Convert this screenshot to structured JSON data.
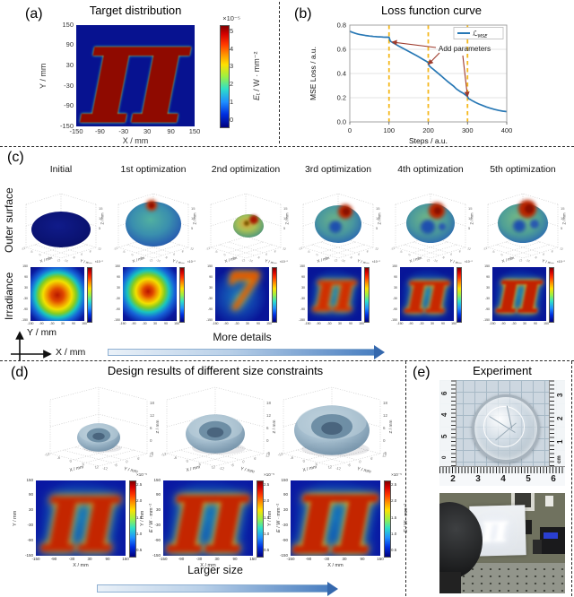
{
  "figure": {
    "panel_a": {
      "tag": "(a)",
      "title": "Target distribution",
      "glyph": "π",
      "xlabel": "X / mm",
      "ylabel": "Y / mm",
      "xticks": [
        "-150",
        "-90",
        "-30",
        "30",
        "90",
        "150"
      ],
      "yticks": [
        "150",
        "90",
        "30",
        "-30",
        "-90",
        "-150"
      ],
      "colorbar": {
        "exp": "×10⁻⁵",
        "ticks": [
          "5",
          "4",
          "3",
          "2",
          "1",
          "0"
        ],
        "label_main": "E",
        "label_sub": "t",
        "label_rest": " / W · mm⁻²"
      }
    },
    "panel_b": {
      "tag": "(b)",
      "title": "Loss function curve"
    },
    "panel_c": {
      "tag": "(c)",
      "row_labels": [
        "Outer surface",
        "Irradiance"
      ],
      "columns": [
        "Initial",
        "1st optimization",
        "2nd optimization",
        "3rd optimization",
        "4th optimization",
        "5th optimization"
      ],
      "surface_axes": {
        "xlabel": "X / mm",
        "ylabel": "Y / mm",
        "zlabel": "Z / mm",
        "zticks": [
          "15",
          "10",
          "5"
        ],
        "xyticks": [
          "-12",
          "-6",
          "0",
          "6",
          "12"
        ]
      },
      "irr_axes": {
        "xticks": [
          "-150",
          "-90",
          "-30",
          "30",
          "90",
          "150"
        ],
        "yticks": [
          "150",
          "90",
          "30",
          "-30",
          "-90",
          "-150"
        ]
      },
      "irr_glyphs": [
        "",
        "",
        "7",
        "π",
        "π",
        "π"
      ],
      "irr_cb_exp": "×10⁻⁵",
      "axes_icon": {
        "x_label": "X / mm",
        "y_label": "Y / mm"
      },
      "arrow_label": "More details"
    },
    "panel_d": {
      "tag": "(d)",
      "title": "Design results of different size constraints",
      "glyph": "π",
      "lens_axes": {
        "xlabel": "X / mm",
        "ylabel": "Y / mm",
        "zlabel": "Z / mm",
        "zticks": [
          "18",
          "12",
          "6",
          "0",
          "-6"
        ],
        "xyticks": [
          "-12",
          "-6",
          "0",
          "6",
          "12"
        ]
      },
      "map_axes": {
        "xlabel": "X / mm",
        "ylabel": "Y / mm",
        "xticks": [
          "-150",
          "-90",
          "-30",
          "30",
          "90",
          "150"
        ],
        "yticks": [
          "150",
          "90",
          "30",
          "-30",
          "-90",
          "-150"
        ]
      },
      "colorbar": {
        "exp": "×10⁻⁵",
        "ticks": [
          "2.5",
          "2.0",
          "1.5",
          "1.0",
          "0.5"
        ],
        "label_main": "E",
        "label_sub": "",
        "label_rest": " / W · mm⁻²"
      },
      "arrow_label": "Larger size"
    },
    "panel_e": {
      "tag": "(e)",
      "title": "Experiment",
      "glyph": "π",
      "ruler_bottom": [
        "2",
        "3",
        "4",
        "5",
        "6"
      ],
      "ruler_right": [
        "3",
        "2",
        "1"
      ],
      "ruler_right_unit": "cm",
      "ruler_left": [
        "6",
        "4",
        "5",
        "0"
      ]
    }
  },
  "chart_data": {
    "type": "line",
    "title": "Loss function curve",
    "xlabel": "Steps / a.u.",
    "ylabel": "MSE Loss / a.u.",
    "xlim": [
      0,
      400
    ],
    "ylim": [
      0,
      0.8
    ],
    "xticks": [
      0,
      100,
      200,
      300,
      400
    ],
    "yticks": [
      "0.0",
      "0.2",
      "0.4",
      "0.6",
      "0.8"
    ],
    "grid": "horizontal",
    "legend": {
      "position": "upper right",
      "label_main": "ℒ",
      "label_sub": "MSE"
    },
    "line_color": "#2878b5",
    "vlines": {
      "x": [
        100,
        200,
        300
      ],
      "color": "#f5b81c",
      "style": "dashed"
    },
    "annotation": {
      "text": "Add parameters",
      "color": "#9e3b2d",
      "arrow_targets": [
        [
          108,
          0.66
        ],
        [
          200,
          0.475
        ],
        [
          300,
          0.21
        ]
      ]
    },
    "series": [
      {
        "name": "L_MSE",
        "x": [
          0,
          5,
          10,
          15,
          20,
          25,
          30,
          35,
          40,
          45,
          50,
          55,
          60,
          65,
          70,
          75,
          80,
          85,
          90,
          95,
          100,
          103,
          108,
          115,
          122,
          130,
          138,
          146,
          154,
          162,
          170,
          178,
          186,
          194,
          200,
          202,
          207,
          212,
          218,
          225,
          232,
          240,
          248,
          256,
          264,
          272,
          280,
          288,
          294,
          300,
          303,
          308,
          314,
          321,
          329,
          338,
          348,
          358,
          369,
          380,
          390,
          400
        ],
        "y": [
          0.75,
          0.742,
          0.736,
          0.731,
          0.727,
          0.723,
          0.72,
          0.717,
          0.714,
          0.712,
          0.71,
          0.708,
          0.706,
          0.705,
          0.704,
          0.703,
          0.702,
          0.701,
          0.7,
          0.7,
          0.699,
          0.668,
          0.658,
          0.645,
          0.632,
          0.618,
          0.604,
          0.59,
          0.576,
          0.562,
          0.548,
          0.533,
          0.518,
          0.503,
          0.49,
          0.465,
          0.45,
          0.437,
          0.421,
          0.402,
          0.383,
          0.36,
          0.338,
          0.317,
          0.297,
          0.272,
          0.254,
          0.239,
          0.225,
          0.21,
          0.192,
          0.183,
          0.172,
          0.16,
          0.148,
          0.136,
          0.124,
          0.113,
          0.103,
          0.095,
          0.089,
          0.085
        ]
      }
    ]
  }
}
